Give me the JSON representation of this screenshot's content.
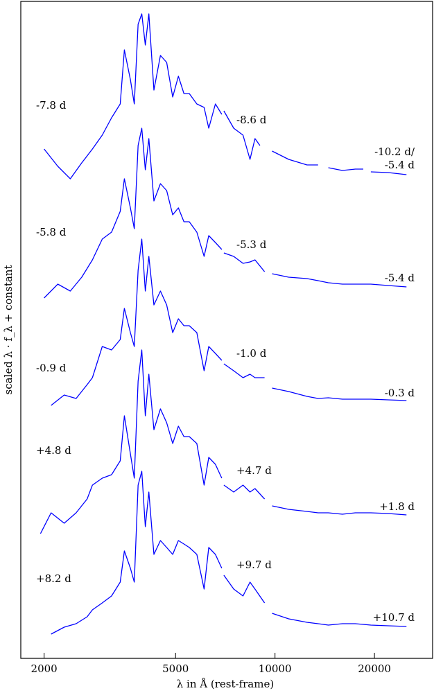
{
  "chart_data": {
    "type": "line",
    "xlabel": "λ in Å (rest-frame)",
    "ylabel": "scaled λ · f_λ + constant",
    "xscale": "log",
    "xlim": [
      1700,
      30000
    ],
    "xticks": [
      {
        "value": 2000,
        "label": "2000"
      },
      {
        "value": 5000,
        "label": "5000"
      },
      {
        "value": 10000,
        "label": "10000"
      },
      {
        "value": 20000,
        "label": "20000"
      }
    ],
    "line_color": "#0000ff",
    "grid": false,
    "series": [
      {
        "epochs": {
          "optical": "-7.8 d",
          "nir": "-8.6 d",
          "ir": "-10.2 d/",
          "ir2": "-5.4 d"
        },
        "optical": [
          [
            2000,
            215
          ],
          [
            2200,
            240
          ],
          [
            2400,
            258
          ],
          [
            2600,
            235
          ],
          [
            2800,
            215
          ],
          [
            3000,
            195
          ],
          [
            3200,
            170
          ],
          [
            3400,
            150
          ],
          [
            3500,
            72
          ],
          [
            3650,
            115
          ],
          [
            3750,
            150
          ],
          [
            3850,
            35
          ],
          [
            3950,
            20
          ],
          [
            4050,
            65
          ],
          [
            4150,
            20
          ],
          [
            4300,
            130
          ],
          [
            4500,
            80
          ],
          [
            4700,
            90
          ],
          [
            4900,
            140
          ],
          [
            5100,
            110
          ],
          [
            5300,
            135
          ],
          [
            5500,
            135
          ],
          [
            5800,
            150
          ],
          [
            6100,
            155
          ],
          [
            6300,
            185
          ],
          [
            6600,
            150
          ],
          [
            6900,
            165
          ]
        ],
        "nir": [
          [
            7000,
            160
          ],
          [
            7500,
            185
          ],
          [
            8000,
            195
          ],
          [
            8400,
            230
          ],
          [
            8700,
            200
          ],
          [
            9000,
            210
          ]
        ],
        "ir": [
          [
            9800,
            218
          ],
          [
            11000,
            230
          ],
          [
            12500,
            238
          ],
          [
            13500,
            238
          ]
        ],
        "ir2": [
          [
            14500,
            242
          ],
          [
            16000,
            246
          ],
          [
            17500,
            244
          ],
          [
            18500,
            244
          ]
        ],
        "ir3": [
          [
            19500,
            248
          ],
          [
            22000,
            249
          ],
          [
            25000,
            252
          ]
        ]
      },
      {
        "epochs": {
          "optical": "-5.8 d",
          "nir": "-5.3 d",
          "ir": "-5.4 d"
        },
        "optical": [
          [
            2000,
            430
          ],
          [
            2200,
            410
          ],
          [
            2400,
            420
          ],
          [
            2600,
            400
          ],
          [
            2800,
            375
          ],
          [
            3000,
            345
          ],
          [
            3200,
            335
          ],
          [
            3400,
            305
          ],
          [
            3500,
            258
          ],
          [
            3650,
            300
          ],
          [
            3750,
            330
          ],
          [
            3850,
            210
          ],
          [
            3950,
            185
          ],
          [
            4050,
            245
          ],
          [
            4150,
            200
          ],
          [
            4300,
            290
          ],
          [
            4500,
            265
          ],
          [
            4700,
            275
          ],
          [
            4900,
            310
          ],
          [
            5100,
            300
          ],
          [
            5300,
            320
          ],
          [
            5500,
            320
          ],
          [
            5800,
            335
          ],
          [
            6100,
            370
          ],
          [
            6300,
            340
          ],
          [
            6600,
            350
          ],
          [
            6900,
            360
          ]
        ],
        "nir": [
          [
            7000,
            365
          ],
          [
            7500,
            370
          ],
          [
            8000,
            380
          ],
          [
            8400,
            378
          ],
          [
            8700,
            375
          ],
          [
            9300,
            392
          ]
        ],
        "ir": [
          [
            9800,
            395
          ],
          [
            11000,
            400
          ],
          [
            12500,
            402
          ],
          [
            13500,
            405
          ],
          [
            14500,
            408
          ],
          [
            16000,
            410
          ],
          [
            17500,
            410
          ],
          [
            19500,
            410
          ],
          [
            22000,
            412
          ],
          [
            25000,
            414
          ]
        ]
      },
      {
        "epochs": {
          "optical": "-0.9 d",
          "nir": "-1.0 d",
          "ir": "-0.3 d"
        },
        "optical": [
          [
            2100,
            585
          ],
          [
            2300,
            570
          ],
          [
            2500,
            575
          ],
          [
            2700,
            555
          ],
          [
            2800,
            545
          ],
          [
            3000,
            500
          ],
          [
            3200,
            505
          ],
          [
            3400,
            490
          ],
          [
            3500,
            445
          ],
          [
            3650,
            480
          ],
          [
            3750,
            500
          ],
          [
            3850,
            390
          ],
          [
            3950,
            345
          ],
          [
            4050,
            420
          ],
          [
            4150,
            370
          ],
          [
            4300,
            440
          ],
          [
            4500,
            420
          ],
          [
            4700,
            440
          ],
          [
            4900,
            480
          ],
          [
            5100,
            460
          ],
          [
            5300,
            470
          ],
          [
            5500,
            470
          ],
          [
            5800,
            480
          ],
          [
            6100,
            535
          ],
          [
            6300,
            500
          ],
          [
            6600,
            510
          ],
          [
            6900,
            520
          ]
        ],
        "nir": [
          [
            7000,
            525
          ],
          [
            7500,
            535
          ],
          [
            8000,
            545
          ],
          [
            8400,
            540
          ],
          [
            8700,
            545
          ],
          [
            9300,
            545
          ]
        ],
        "ir": [
          [
            9800,
            560
          ],
          [
            11000,
            565
          ],
          [
            12500,
            572
          ],
          [
            13500,
            575
          ],
          [
            14500,
            574
          ],
          [
            16000,
            576
          ],
          [
            17500,
            576
          ],
          [
            19500,
            576
          ],
          [
            22000,
            577
          ],
          [
            25000,
            578
          ]
        ]
      },
      {
        "epochs": {
          "optical": "+4.8 d",
          "nir": "+4.7 d",
          "ir": "+1.8 d"
        },
        "optical": [
          [
            1950,
            770
          ],
          [
            2100,
            740
          ],
          [
            2300,
            755
          ],
          [
            2500,
            740
          ],
          [
            2700,
            720
          ],
          [
            2800,
            700
          ],
          [
            3000,
            690
          ],
          [
            3200,
            685
          ],
          [
            3400,
            665
          ],
          [
            3500,
            600
          ],
          [
            3650,
            655
          ],
          [
            3750,
            690
          ],
          [
            3850,
            550
          ],
          [
            3950,
            505
          ],
          [
            4050,
            600
          ],
          [
            4150,
            540
          ],
          [
            4300,
            620
          ],
          [
            4500,
            590
          ],
          [
            4700,
            610
          ],
          [
            4900,
            640
          ],
          [
            5100,
            615
          ],
          [
            5300,
            630
          ],
          [
            5500,
            630
          ],
          [
            5800,
            640
          ],
          [
            6100,
            700
          ],
          [
            6300,
            660
          ],
          [
            6600,
            670
          ],
          [
            6900,
            690
          ]
        ],
        "nir": [
          [
            7000,
            700
          ],
          [
            7500,
            710
          ],
          [
            8000,
            700
          ],
          [
            8400,
            710
          ],
          [
            8700,
            705
          ],
          [
            9300,
            720
          ]
        ],
        "ir": [
          [
            9800,
            730
          ],
          [
            11000,
            735
          ],
          [
            12500,
            738
          ],
          [
            13500,
            740
          ],
          [
            14500,
            740
          ],
          [
            16000,
            742
          ],
          [
            17500,
            740
          ],
          [
            19500,
            740
          ],
          [
            22000,
            741
          ],
          [
            25000,
            743
          ]
        ]
      },
      {
        "epochs": {
          "optical": "+8.2 d",
          "nir": "+9.7 d",
          "ir": "+10.7 d"
        },
        "optical": [
          [
            2100,
            915
          ],
          [
            2300,
            905
          ],
          [
            2500,
            900
          ],
          [
            2700,
            890
          ],
          [
            2800,
            880
          ],
          [
            3000,
            870
          ],
          [
            3200,
            860
          ],
          [
            3400,
            840
          ],
          [
            3500,
            795
          ],
          [
            3650,
            820
          ],
          [
            3750,
            840
          ],
          [
            3850,
            700
          ],
          [
            3950,
            680
          ],
          [
            4050,
            760
          ],
          [
            4150,
            710
          ],
          [
            4300,
            800
          ],
          [
            4500,
            780
          ],
          [
            4700,
            790
          ],
          [
            4900,
            800
          ],
          [
            5100,
            780
          ],
          [
            5300,
            785
          ],
          [
            5500,
            790
          ],
          [
            5800,
            800
          ],
          [
            6100,
            850
          ],
          [
            6300,
            790
          ],
          [
            6600,
            800
          ],
          [
            6900,
            820
          ]
        ],
        "nir": [
          [
            7000,
            830
          ],
          [
            7500,
            850
          ],
          [
            8000,
            860
          ],
          [
            8400,
            840
          ],
          [
            8700,
            850
          ],
          [
            9300,
            870
          ]
        ],
        "ir": [
          [
            9800,
            885
          ],
          [
            11000,
            893
          ],
          [
            12500,
            898
          ],
          [
            13500,
            900
          ],
          [
            14500,
            902
          ],
          [
            16000,
            900
          ],
          [
            17500,
            900
          ],
          [
            19500,
            902
          ],
          [
            22000,
            903
          ],
          [
            25000,
            904
          ]
        ]
      }
    ]
  }
}
